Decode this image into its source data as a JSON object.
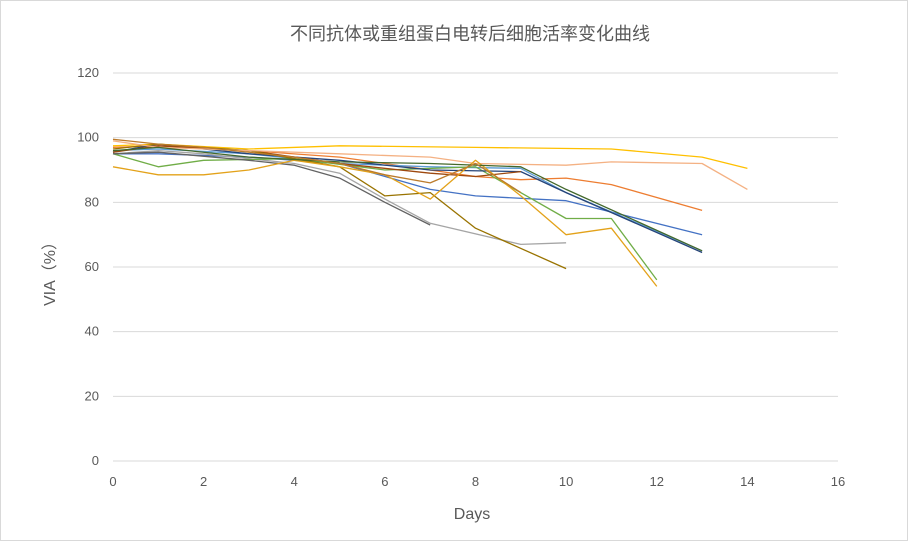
{
  "chart_data": {
    "type": "line",
    "title": "不同抗体或重组蛋白电转后细胞活率变化曲线",
    "xlabel": "Days",
    "ylabel": "VIA（%）",
    "xlim": [
      0,
      16
    ],
    "ylim": [
      0,
      120
    ],
    "xticks": [
      0,
      2,
      4,
      6,
      8,
      10,
      12,
      14,
      16
    ],
    "yticks": [
      0,
      20,
      40,
      60,
      80,
      100,
      120
    ],
    "grid": "horizontal",
    "legend": "none",
    "series": [
      {
        "color": "#4472C4",
        "x": [
          0,
          1,
          3,
          5,
          7,
          8,
          10,
          13
        ],
        "y": [
          95,
          95,
          94,
          92,
          84,
          82,
          80.5,
          70
        ]
      },
      {
        "color": "#ED7D31",
        "x": [
          0,
          1,
          3,
          5,
          8,
          9,
          10,
          11,
          13
        ],
        "y": [
          97,
          97.5,
          96,
          94,
          88,
          87,
          87.5,
          85.5,
          77.5
        ]
      },
      {
        "color": "#A5A5A5",
        "x": [
          0,
          1,
          2,
          4,
          5,
          6,
          7,
          9,
          10
        ],
        "y": [
          95,
          96,
          95,
          92,
          89,
          81,
          73.5,
          67,
          67.5
        ]
      },
      {
        "color": "#FFC000",
        "x": [
          0,
          1,
          3,
          5,
          8,
          11,
          13,
          14
        ],
        "y": [
          97.5,
          98,
          96.5,
          97.5,
          97,
          96.5,
          94,
          90.5
        ]
      },
      {
        "color": "#5B9BD5",
        "x": [
          0,
          1,
          3,
          5,
          7,
          9,
          10,
          13
        ],
        "y": [
          96,
          96.5,
          95,
          92,
          91,
          90.5,
          83,
          65
        ]
      },
      {
        "color": "#70AD47",
        "x": [
          0,
          1,
          2,
          4,
          6,
          8,
          10,
          11,
          12
        ],
        "y": [
          95,
          91,
          93,
          93.5,
          90,
          91,
          75,
          75,
          56
        ]
      },
      {
        "color": "#264478",
        "x": [
          0,
          1,
          3,
          5,
          7,
          9,
          10,
          13
        ],
        "y": [
          95.5,
          98,
          95,
          93,
          90,
          89.5,
          83,
          64.5
        ]
      },
      {
        "color": "#9E480E",
        "x": [
          0,
          1,
          3,
          5,
          7,
          8,
          9
        ],
        "y": [
          95.5,
          97.5,
          96,
          92,
          89,
          88,
          89.5
        ]
      },
      {
        "color": "#636363",
        "x": [
          0,
          1,
          3,
          4,
          5,
          6,
          7
        ],
        "y": [
          95,
          95.5,
          93,
          91.5,
          87.5,
          80,
          73
        ]
      },
      {
        "color": "#997300",
        "x": [
          0,
          1,
          3,
          5,
          6,
          7,
          8,
          10
        ],
        "y": [
          96.5,
          98,
          96,
          91,
          82,
          83,
          72,
          59.5
        ]
      },
      {
        "color": "#F4B183",
        "x": [
          0,
          1,
          3,
          5,
          7,
          8,
          10,
          11,
          13,
          14
        ],
        "y": [
          99,
          97,
          96,
          95,
          94,
          92,
          91.5,
          92.5,
          92,
          84
        ]
      },
      {
        "color": "#E3A21A",
        "x": [
          0,
          1,
          2,
          3,
          4,
          5,
          6,
          7,
          8,
          9,
          10,
          11,
          12
        ],
        "y": [
          91,
          88.5,
          88.5,
          90,
          93,
          91,
          88.5,
          81,
          93,
          82,
          70,
          72,
          54
        ]
      },
      {
        "color": "#43682B",
        "x": [
          0,
          1,
          3,
          5,
          7,
          9,
          10,
          13
        ],
        "y": [
          96,
          97,
          94,
          92.5,
          92,
          91,
          84,
          65
        ]
      },
      {
        "color": "#BC7B2B",
        "x": [
          0,
          1,
          2,
          4,
          5,
          6,
          7,
          8,
          9
        ],
        "y": [
          99.5,
          98,
          97,
          94,
          92,
          88.5,
          86,
          92,
          83
        ]
      }
    ]
  }
}
